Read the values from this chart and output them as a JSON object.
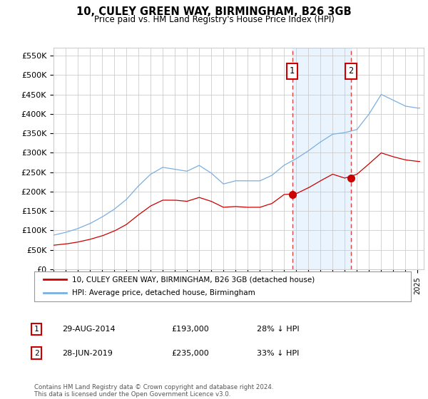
{
  "title": "10, CULEY GREEN WAY, BIRMINGHAM, B26 3GB",
  "subtitle": "Price paid vs. HM Land Registry's House Price Index (HPI)",
  "ylabel_ticks": [
    "£0",
    "£50K",
    "£100K",
    "£150K",
    "£200K",
    "£250K",
    "£300K",
    "£350K",
    "£400K",
    "£450K",
    "£500K",
    "£550K"
  ],
  "ytick_values": [
    0,
    50000,
    100000,
    150000,
    200000,
    250000,
    300000,
    350000,
    400000,
    450000,
    500000,
    550000
  ],
  "ylim": [
    0,
    570000
  ],
  "xlim_start": 1995.3,
  "xlim_end": 2025.5,
  "hpi_color": "#7aafe0",
  "price_color": "#cc0000",
  "marker1_x": 2014.66,
  "marker1_y": 193000,
  "marker2_x": 2019.5,
  "marker2_y": 235000,
  "vline_color": "#dd4444",
  "shade_color": "#ddeeff",
  "legend_entry1": "10, CULEY GREEN WAY, BIRMINGHAM, B26 3GB (detached house)",
  "legend_entry2": "HPI: Average price, detached house, Birmingham",
  "table_row1_num": "1",
  "table_row1_date": "29-AUG-2014",
  "table_row1_price": "£193,000",
  "table_row1_hpi": "28% ↓ HPI",
  "table_row2_num": "2",
  "table_row2_date": "28-JUN-2019",
  "table_row2_price": "£235,000",
  "table_row2_hpi": "33% ↓ HPI",
  "footnote": "Contains HM Land Registry data © Crown copyright and database right 2024.\nThis data is licensed under the Open Government Licence v3.0.",
  "background_color": "#ffffff",
  "grid_color": "#cccccc"
}
